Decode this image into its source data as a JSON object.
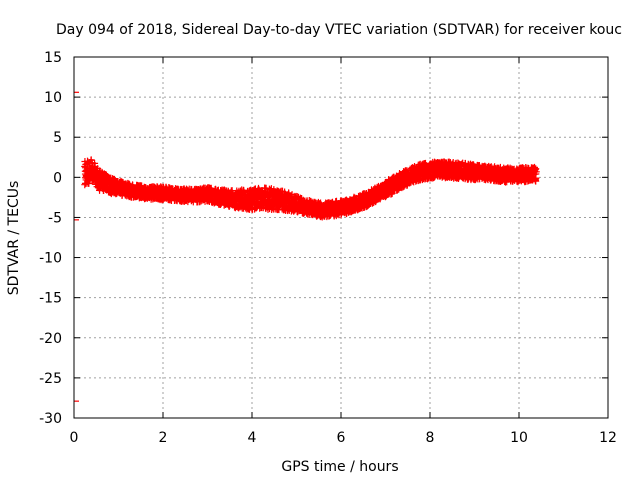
{
  "chart_data": {
    "type": "scatter",
    "title": "Day 094 of 2018, Sidereal Day-to-day VTEC variation (SDTVAR) for receiver kouc",
    "xlabel": "GPS time / hours",
    "ylabel": "SDTVAR / TECUs",
    "xlim": [
      0,
      12
    ],
    "ylim": [
      -30,
      15
    ],
    "xticks": [
      0,
      2,
      4,
      6,
      8,
      10,
      12
    ],
    "yticks": [
      -30,
      -25,
      -20,
      -15,
      -10,
      -5,
      0,
      5,
      10,
      15
    ],
    "grid": true,
    "marker": "+",
    "color": "#ff0000",
    "series": [
      {
        "name": "SDTVAR",
        "centerline": [
          [
            0.25,
            0.5
          ],
          [
            0.4,
            0.8
          ],
          [
            0.55,
            -0.3
          ],
          [
            0.8,
            -1.0
          ],
          [
            1.0,
            -1.3
          ],
          [
            1.3,
            -1.7
          ],
          [
            1.6,
            -1.9
          ],
          [
            2.0,
            -2.0
          ],
          [
            2.4,
            -2.2
          ],
          [
            2.8,
            -2.3
          ],
          [
            3.0,
            -2.1
          ],
          [
            3.2,
            -2.4
          ],
          [
            3.6,
            -2.7
          ],
          [
            4.0,
            -2.8
          ],
          [
            4.3,
            -2.6
          ],
          [
            4.7,
            -2.9
          ],
          [
            5.0,
            -3.3
          ],
          [
            5.3,
            -3.8
          ],
          [
            5.6,
            -4.1
          ],
          [
            6.0,
            -3.8
          ],
          [
            6.4,
            -3.2
          ],
          [
            6.8,
            -2.1
          ],
          [
            7.1,
            -1.2
          ],
          [
            7.4,
            -0.2
          ],
          [
            7.8,
            0.7
          ],
          [
            8.2,
            1.0
          ],
          [
            8.5,
            0.9
          ],
          [
            8.9,
            0.7
          ],
          [
            9.3,
            0.5
          ],
          [
            9.7,
            0.3
          ],
          [
            10.0,
            0.3
          ],
          [
            10.4,
            0.4
          ]
        ],
        "spread": [
          1.6,
          1.4,
          1.3,
          1.0,
          0.9,
          0.8,
          0.8,
          0.8,
          0.8,
          0.8,
          0.9,
          0.9,
          1.1,
          1.3,
          1.4,
          1.2,
          1.0,
          0.9,
          0.9,
          0.9,
          0.9,
          0.9,
          1.0,
          1.0,
          1.0,
          1.0,
          1.0,
          1.0,
          0.9,
          0.9,
          0.9,
          0.9
        ],
        "outliers": [
          [
            0.0,
            10.6
          ],
          [
            0.0,
            -5.3
          ],
          [
            0.0,
            -27.9
          ]
        ]
      }
    ]
  }
}
